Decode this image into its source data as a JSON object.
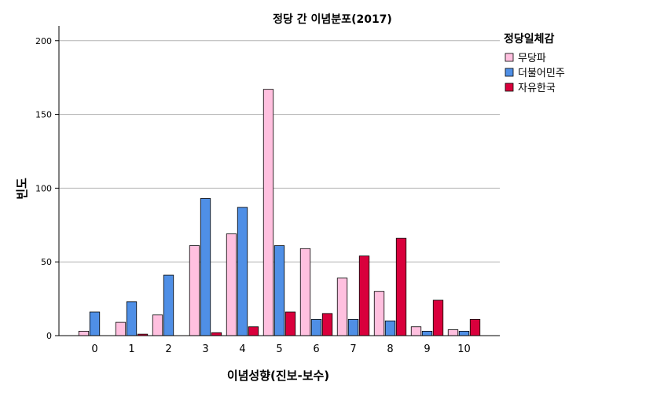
{
  "chart_data": {
    "type": "bar",
    "title": "정당 간 이념분포(2017)",
    "xlabel": "이념성향(진보-보수)",
    "ylabel": "빈도",
    "categories": [
      "0",
      "1",
      "2",
      "3",
      "4",
      "5",
      "6",
      "7",
      "8",
      "9",
      "10"
    ],
    "ylim": [
      0,
      210
    ],
    "yticks": [
      0,
      50,
      100,
      150,
      200
    ],
    "grid": true,
    "legend_title": "정당일체감",
    "legend_position": "top-right outside",
    "series": [
      {
        "name": "무당파",
        "color": "#ffc0df",
        "values": [
          3,
          9,
          14,
          61,
          69,
          167,
          59,
          39,
          30,
          6,
          4
        ]
      },
      {
        "name": "더불어민주",
        "color": "#4f8fe6",
        "values": [
          16,
          23,
          41,
          93,
          87,
          61,
          11,
          11,
          10,
          3,
          3
        ]
      },
      {
        "name": "자유한국",
        "color": "#d9003c",
        "values": [
          0,
          1,
          0,
          2,
          6,
          16,
          15,
          54,
          66,
          24,
          11
        ]
      }
    ]
  }
}
